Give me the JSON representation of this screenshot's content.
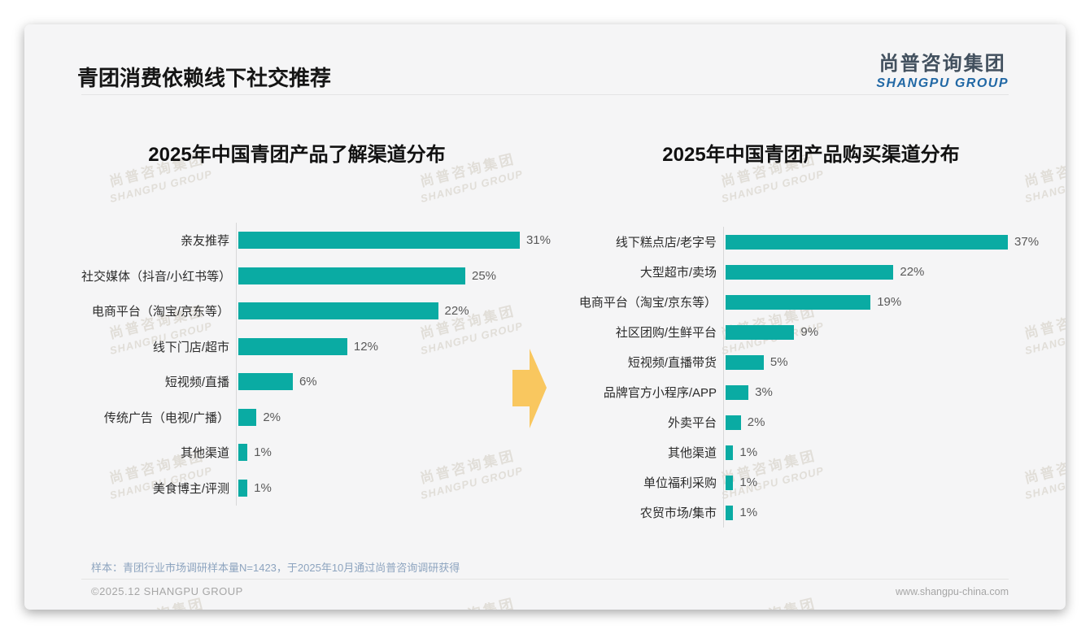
{
  "page": {
    "title": "青团消费依赖线下社交推荐",
    "logo_cn": "尚普咨询集团",
    "logo_en": "SHANGPU GROUP",
    "watermark_cn": "尚普咨询集团",
    "watermark_en": "SHANGPU GROUP",
    "note": "样本：青团行业市场调研样本量N=1423，于2025年10月通过尚普咨询调研获得",
    "footer_left": "©2025.12 SHANGPU GROUP",
    "footer_right": "www.shangpu-china.com"
  },
  "colors": {
    "bar": "#0aaba3",
    "arrow": "#f9c75f",
    "logo_blue": "#2168a5",
    "note_blue": "#8da4bf"
  },
  "icons": {
    "arrow": "right-arrow-icon"
  },
  "chart_data": [
    {
      "type": "bar",
      "orientation": "horizontal",
      "title": "2025年中国青团产品了解渠道分布",
      "categories": [
        "亲友推荐",
        "社交媒体（抖音/小红书等）",
        "电商平台（淘宝/京东等）",
        "线下门店/超市",
        "短视频/直播",
        "传统广告（电视/广播）",
        "其他渠道",
        "美食博主/评测"
      ],
      "values": [
        31,
        25,
        22,
        12,
        6,
        2,
        1,
        1
      ],
      "unit": "%",
      "xlim": [
        0,
        35
      ],
      "grid": false,
      "legend": "none",
      "bar_color": "#0aaba3"
    },
    {
      "type": "bar",
      "orientation": "horizontal",
      "title": "2025年中国青团产品购买渠道分布",
      "categories": [
        "线下糕点店/老字号",
        "大型超市/卖场",
        "电商平台（淘宝/京东等）",
        "社区团购/生鲜平台",
        "短视频/直播带货",
        "品牌官方小程序/APP",
        "外卖平台",
        "其他渠道",
        "单位福利采购",
        "农贸市场/集市"
      ],
      "values": [
        37,
        22,
        19,
        9,
        5,
        3,
        2,
        1,
        1,
        1
      ],
      "unit": "%",
      "xlim": [
        0,
        40
      ],
      "grid": false,
      "legend": "none",
      "bar_color": "#0aaba3"
    }
  ]
}
